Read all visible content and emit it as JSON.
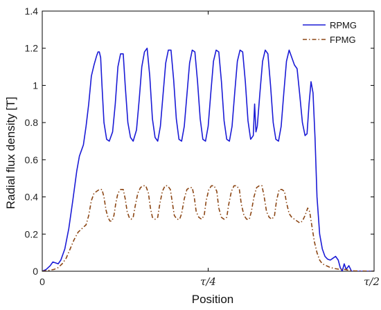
{
  "chart_data": {
    "type": "line",
    "xlabel": "Position",
    "ylabel": "Radial flux density [T]",
    "xlim": [
      0,
      0.5
    ],
    "ylim": [
      0,
      1.4
    ],
    "x_ticks": [
      {
        "value": 0,
        "label": "0"
      },
      {
        "value": 0.25,
        "label": "τ/4"
      },
      {
        "value": 0.5,
        "label": "τ/2"
      }
    ],
    "y_ticks": [
      {
        "value": 0,
        "label": "0"
      },
      {
        "value": 0.2,
        "label": "0.2"
      },
      {
        "value": 0.4,
        "label": "0.4"
      },
      {
        "value": 0.6,
        "label": "0.6"
      },
      {
        "value": 0.8,
        "label": "0.8"
      },
      {
        "value": 1.0,
        "label": "1"
      },
      {
        "value": 1.2,
        "label": "1.2"
      },
      {
        "value": 1.4,
        "label": "1.4"
      }
    ],
    "legend_position": "top-right",
    "grid": false,
    "x_unit": "tau",
    "series": [
      {
        "name": "RPMG",
        "color": "#1a1ad6",
        "style": "solid",
        "points": [
          [
            0.0,
            0.0
          ],
          [
            0.006,
            0.01
          ],
          [
            0.012,
            0.03
          ],
          [
            0.016,
            0.05
          ],
          [
            0.02,
            0.045
          ],
          [
            0.024,
            0.04
          ],
          [
            0.028,
            0.06
          ],
          [
            0.034,
            0.12
          ],
          [
            0.04,
            0.23
          ],
          [
            0.046,
            0.38
          ],
          [
            0.052,
            0.54
          ],
          [
            0.056,
            0.62
          ],
          [
            0.059,
            0.65
          ],
          [
            0.062,
            0.68
          ],
          [
            0.066,
            0.78
          ],
          [
            0.07,
            0.9
          ],
          [
            0.074,
            1.05
          ],
          [
            0.078,
            1.11
          ],
          [
            0.082,
            1.16
          ],
          [
            0.084,
            1.18
          ],
          [
            0.086,
            1.18
          ],
          [
            0.088,
            1.15
          ],
          [
            0.09,
            1.0
          ],
          [
            0.093,
            0.8
          ],
          [
            0.097,
            0.71
          ],
          [
            0.101,
            0.7
          ],
          [
            0.106,
            0.75
          ],
          [
            0.11,
            0.9
          ],
          [
            0.114,
            1.1
          ],
          [
            0.118,
            1.17
          ],
          [
            0.122,
            1.17
          ],
          [
            0.125,
            1.0
          ],
          [
            0.129,
            0.8
          ],
          [
            0.133,
            0.72
          ],
          [
            0.137,
            0.7
          ],
          [
            0.142,
            0.76
          ],
          [
            0.146,
            0.92
          ],
          [
            0.15,
            1.1
          ],
          [
            0.154,
            1.18
          ],
          [
            0.158,
            1.2
          ],
          [
            0.162,
            1.05
          ],
          [
            0.166,
            0.82
          ],
          [
            0.17,
            0.72
          ],
          [
            0.174,
            0.7
          ],
          [
            0.178,
            0.78
          ],
          [
            0.182,
            0.95
          ],
          [
            0.186,
            1.12
          ],
          [
            0.19,
            1.19
          ],
          [
            0.194,
            1.19
          ],
          [
            0.198,
            1.03
          ],
          [
            0.202,
            0.82
          ],
          [
            0.206,
            0.71
          ],
          [
            0.21,
            0.7
          ],
          [
            0.214,
            0.78
          ],
          [
            0.218,
            0.95
          ],
          [
            0.222,
            1.12
          ],
          [
            0.226,
            1.19
          ],
          [
            0.23,
            1.18
          ],
          [
            0.234,
            1.02
          ],
          [
            0.238,
            0.82
          ],
          [
            0.242,
            0.71
          ],
          [
            0.246,
            0.7
          ],
          [
            0.25,
            0.78
          ],
          [
            0.254,
            0.96
          ],
          [
            0.258,
            1.13
          ],
          [
            0.262,
            1.19
          ],
          [
            0.266,
            1.18
          ],
          [
            0.27,
            1.02
          ],
          [
            0.274,
            0.81
          ],
          [
            0.278,
            0.71
          ],
          [
            0.282,
            0.7
          ],
          [
            0.286,
            0.78
          ],
          [
            0.29,
            0.96
          ],
          [
            0.294,
            1.13
          ],
          [
            0.298,
            1.19
          ],
          [
            0.302,
            1.18
          ],
          [
            0.306,
            1.02
          ],
          [
            0.31,
            0.81
          ],
          [
            0.314,
            0.71
          ],
          [
            0.318,
            0.73
          ],
          [
            0.32,
            0.9
          ],
          [
            0.322,
            0.75
          ],
          [
            0.324,
            0.78
          ],
          [
            0.328,
            0.96
          ],
          [
            0.332,
            1.13
          ],
          [
            0.336,
            1.19
          ],
          [
            0.34,
            1.17
          ],
          [
            0.344,
            1.0
          ],
          [
            0.348,
            0.8
          ],
          [
            0.352,
            0.71
          ],
          [
            0.356,
            0.7
          ],
          [
            0.36,
            0.78
          ],
          [
            0.364,
            0.96
          ],
          [
            0.368,
            1.13
          ],
          [
            0.372,
            1.19
          ],
          [
            0.376,
            1.15
          ],
          [
            0.38,
            1.11
          ],
          [
            0.384,
            1.09
          ],
          [
            0.388,
            0.95
          ],
          [
            0.392,
            0.8
          ],
          [
            0.396,
            0.73
          ],
          [
            0.399,
            0.74
          ],
          [
            0.402,
            0.9
          ],
          [
            0.405,
            1.02
          ],
          [
            0.408,
            0.96
          ],
          [
            0.411,
            0.72
          ],
          [
            0.414,
            0.4
          ],
          [
            0.418,
            0.2
          ],
          [
            0.422,
            0.12
          ],
          [
            0.426,
            0.08
          ],
          [
            0.43,
            0.065
          ],
          [
            0.434,
            0.06
          ],
          [
            0.438,
            0.07
          ],
          [
            0.442,
            0.08
          ],
          [
            0.446,
            0.06
          ],
          [
            0.449,
            0.02
          ],
          [
            0.452,
            0.0
          ],
          [
            0.455,
            0.04
          ],
          [
            0.458,
            0.01
          ],
          [
            0.462,
            0.03
          ],
          [
            0.466,
            0.0
          ],
          [
            0.5,
            0.0
          ]
        ]
      },
      {
        "name": "FPMG",
        "color": "#8b4513",
        "style": "dashdot",
        "points": [
          [
            0.0,
            0.0
          ],
          [
            0.01,
            0.005
          ],
          [
            0.018,
            0.01
          ],
          [
            0.024,
            0.02
          ],
          [
            0.03,
            0.04
          ],
          [
            0.036,
            0.07
          ],
          [
            0.042,
            0.12
          ],
          [
            0.048,
            0.17
          ],
          [
            0.054,
            0.21
          ],
          [
            0.06,
            0.23
          ],
          [
            0.066,
            0.25
          ],
          [
            0.07,
            0.3
          ],
          [
            0.074,
            0.38
          ],
          [
            0.078,
            0.42
          ],
          [
            0.082,
            0.43
          ],
          [
            0.086,
            0.44
          ],
          [
            0.09,
            0.44
          ],
          [
            0.093,
            0.4
          ],
          [
            0.096,
            0.33
          ],
          [
            0.099,
            0.29
          ],
          [
            0.102,
            0.27
          ],
          [
            0.105,
            0.27
          ],
          [
            0.108,
            0.3
          ],
          [
            0.111,
            0.37
          ],
          [
            0.114,
            0.42
          ],
          [
            0.118,
            0.44
          ],
          [
            0.122,
            0.44
          ],
          [
            0.125,
            0.39
          ],
          [
            0.128,
            0.32
          ],
          [
            0.131,
            0.29
          ],
          [
            0.134,
            0.28
          ],
          [
            0.137,
            0.29
          ],
          [
            0.14,
            0.35
          ],
          [
            0.144,
            0.42
          ],
          [
            0.148,
            0.45
          ],
          [
            0.152,
            0.46
          ],
          [
            0.156,
            0.46
          ],
          [
            0.16,
            0.42
          ],
          [
            0.163,
            0.34
          ],
          [
            0.166,
            0.29
          ],
          [
            0.17,
            0.28
          ],
          [
            0.174,
            0.29
          ],
          [
            0.177,
            0.36
          ],
          [
            0.181,
            0.43
          ],
          [
            0.185,
            0.46
          ],
          [
            0.189,
            0.46
          ],
          [
            0.193,
            0.44
          ],
          [
            0.196,
            0.37
          ],
          [
            0.199,
            0.3
          ],
          [
            0.203,
            0.28
          ],
          [
            0.207,
            0.28
          ],
          [
            0.21,
            0.31
          ],
          [
            0.214,
            0.39
          ],
          [
            0.218,
            0.44
          ],
          [
            0.222,
            0.45
          ],
          [
            0.226,
            0.45
          ],
          [
            0.229,
            0.4
          ],
          [
            0.232,
            0.32
          ],
          [
            0.236,
            0.29
          ],
          [
            0.24,
            0.28
          ],
          [
            0.244,
            0.3
          ],
          [
            0.247,
            0.38
          ],
          [
            0.251,
            0.44
          ],
          [
            0.255,
            0.46
          ],
          [
            0.259,
            0.46
          ],
          [
            0.263,
            0.43
          ],
          [
            0.266,
            0.34
          ],
          [
            0.27,
            0.29
          ],
          [
            0.274,
            0.28
          ],
          [
            0.278,
            0.29
          ],
          [
            0.281,
            0.36
          ],
          [
            0.285,
            0.43
          ],
          [
            0.289,
            0.46
          ],
          [
            0.293,
            0.46
          ],
          [
            0.297,
            0.44
          ],
          [
            0.3,
            0.36
          ],
          [
            0.304,
            0.3
          ],
          [
            0.308,
            0.28
          ],
          [
            0.312,
            0.28
          ],
          [
            0.315,
            0.32
          ],
          [
            0.319,
            0.4
          ],
          [
            0.323,
            0.45
          ],
          [
            0.327,
            0.46
          ],
          [
            0.331,
            0.46
          ],
          [
            0.334,
            0.41
          ],
          [
            0.338,
            0.32
          ],
          [
            0.342,
            0.29
          ],
          [
            0.346,
            0.28
          ],
          [
            0.35,
            0.3
          ],
          [
            0.353,
            0.38
          ],
          [
            0.357,
            0.44
          ],
          [
            0.361,
            0.44
          ],
          [
            0.365,
            0.43
          ],
          [
            0.368,
            0.37
          ],
          [
            0.372,
            0.31
          ],
          [
            0.376,
            0.29
          ],
          [
            0.38,
            0.28
          ],
          [
            0.384,
            0.27
          ],
          [
            0.388,
            0.26
          ],
          [
            0.392,
            0.27
          ],
          [
            0.396,
            0.3
          ],
          [
            0.4,
            0.34
          ],
          [
            0.403,
            0.32
          ],
          [
            0.406,
            0.25
          ],
          [
            0.41,
            0.16
          ],
          [
            0.414,
            0.1
          ],
          [
            0.418,
            0.06
          ],
          [
            0.422,
            0.04
          ],
          [
            0.428,
            0.03
          ],
          [
            0.434,
            0.02
          ],
          [
            0.44,
            0.015
          ],
          [
            0.448,
            0.01
          ],
          [
            0.456,
            0.01
          ],
          [
            0.462,
            0.005
          ],
          [
            0.47,
            0.002
          ],
          [
            0.5,
            0.0
          ]
        ]
      }
    ]
  }
}
